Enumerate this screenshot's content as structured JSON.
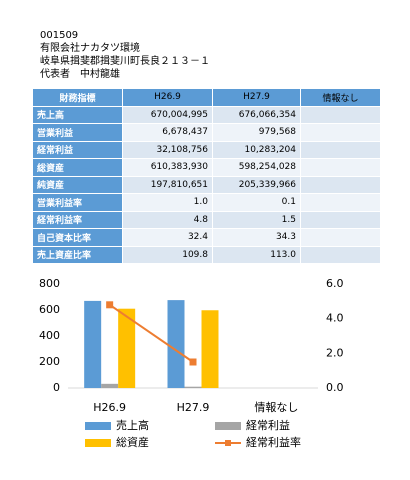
{
  "header": {
    "code": "001509",
    "company": "有限会社ナカタツ環境",
    "address": "岐阜県揖斐郡揖斐川町長良２１３－１",
    "representative": "代表者　中村龍雄"
  },
  "table": {
    "columns": [
      "財務指標",
      "H26.9",
      "H27.9",
      "情報なし"
    ],
    "rows": [
      [
        "売上高",
        "670,004,995",
        "676,066,354"
      ],
      [
        "営業利益",
        "6,678,437",
        "979,568"
      ],
      [
        "経常利益",
        "32,108,756",
        "10,283,204"
      ],
      [
        "総資産",
        "610,383,930",
        "598,254,028"
      ],
      [
        "純資産",
        "197,810,651",
        "205,339,966"
      ],
      [
        "営業利益率",
        "1.0",
        "0.1"
      ],
      [
        "経常利益率",
        "4.8",
        "1.5"
      ],
      [
        "自己資本比率",
        "32.4",
        "34.3"
      ],
      [
        "売上資産比率",
        "109.8",
        "113.0"
      ]
    ]
  },
  "chart_data": {
    "type": "bar",
    "categories": [
      "H26.9",
      "H27.9",
      "情報なし"
    ],
    "series": [
      {
        "name": "売上高",
        "color": "#5b9bd5",
        "values": [
          670,
          676,
          null
        ]
      },
      {
        "name": "経常利益",
        "color": "#a5a5a5",
        "values": [
          32,
          10,
          null
        ]
      },
      {
        "name": "総資産",
        "color": "#ffc000",
        "values": [
          610,
          598,
          null
        ]
      },
      {
        "name": "経常利益率",
        "color": "#ed7d31",
        "type": "line",
        "axis": "y2",
        "values": [
          4.8,
          1.5,
          null
        ]
      }
    ],
    "ylim": [
      0,
      800
    ],
    "yticks": [
      0,
      200,
      400,
      600,
      800
    ],
    "y2lim": [
      0,
      6
    ],
    "y2ticks": [
      {
        "value": 0,
        "label": "0.0"
      },
      {
        "value": 2,
        "label": "2.0"
      },
      {
        "value": 4,
        "label": "4.0"
      },
      {
        "value": 6,
        "label": "6.0"
      }
    ],
    "grid": false
  }
}
